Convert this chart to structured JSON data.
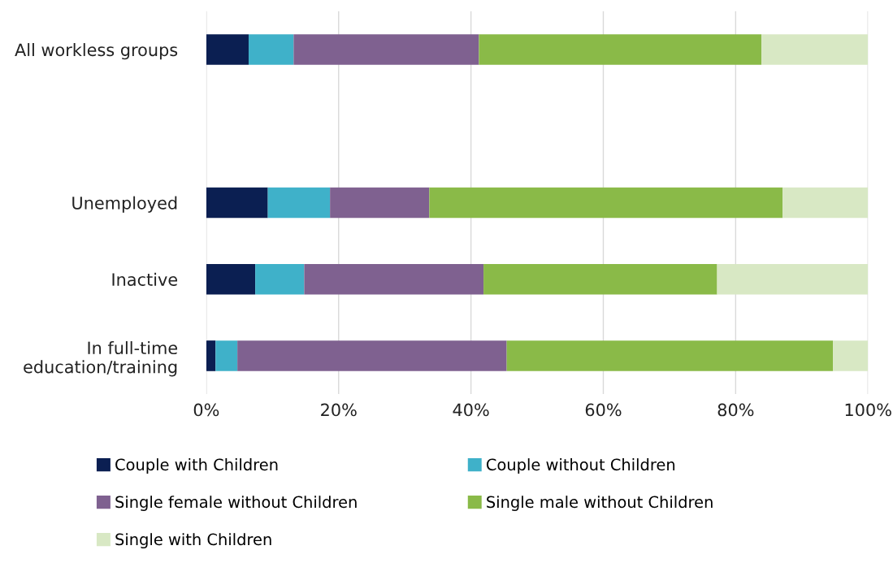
{
  "chart_data": {
    "type": "bar",
    "orientation": "horizontal",
    "stacked": true,
    "categories": [
      "All workless groups",
      null,
      "Unemployed",
      "Inactive",
      "In full-time\neducation/training"
    ],
    "series": [
      {
        "name": "Couple with Children",
        "color": "#0b1f52",
        "values": [
          6.4,
          null,
          9.3,
          7.4,
          1.4
        ]
      },
      {
        "name": "Couple without Children",
        "color": "#3fb1c9",
        "values": [
          6.8,
          null,
          9.4,
          7.4,
          3.3
        ]
      },
      {
        "name": "Single female without Children",
        "color": "#7f6190",
        "values": [
          28.0,
          null,
          15.0,
          27.1,
          40.7
        ]
      },
      {
        "name": "Single male without Children",
        "color": "#8aba48",
        "values": [
          42.7,
          null,
          53.4,
          35.3,
          49.3
        ]
      },
      {
        "name": "Single with Children",
        "color": "#d8e8c4",
        "values": [
          16.1,
          null,
          12.9,
          22.8,
          5.3
        ]
      }
    ],
    "xlim": [
      0,
      100
    ],
    "xticks": [
      {
        "value": 0,
        "label": "0%"
      },
      {
        "value": 20,
        "label": "20%"
      },
      {
        "value": 40,
        "label": "40%"
      },
      {
        "value": 60,
        "label": "60%"
      },
      {
        "value": 80,
        "label": "80%"
      },
      {
        "value": 100,
        "label": "100%"
      }
    ],
    "grid": "x",
    "legend": "bottom"
  }
}
